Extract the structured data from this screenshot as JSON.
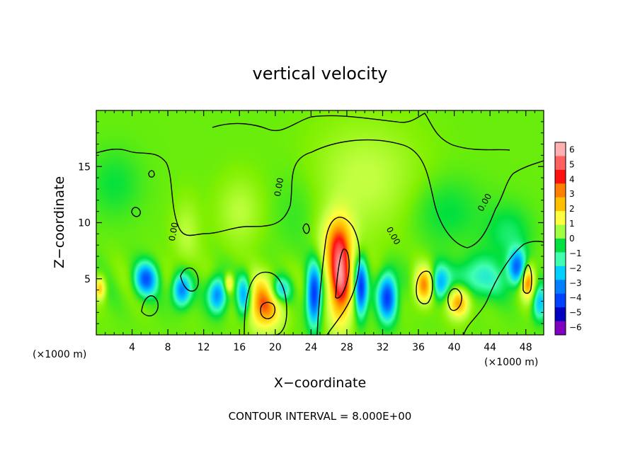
{
  "chart_data": {
    "type": "heatmap",
    "title": "vertical velocity",
    "xlabel": "X−coordinate",
    "ylabel": "Z−coordinate",
    "x_unit_label": "(×1000 m)",
    "y_unit_label": "(×1000 m)",
    "xlim": [
      0,
      50
    ],
    "ylim": [
      0,
      20
    ],
    "x_ticks": [
      4,
      8,
      12,
      16,
      20,
      24,
      28,
      32,
      36,
      40,
      44,
      48
    ],
    "y_ticks": [
      5,
      10,
      15
    ],
    "colorbar": {
      "ticks": [
        "6",
        "5",
        "4",
        "3",
        "2",
        "1",
        "0",
        "−1",
        "−2",
        "−3",
        "−4",
        "−5",
        "−6"
      ],
      "colors": [
        "#ffb0b0",
        "#ff6060",
        "#ff1010",
        "#ff8000",
        "#ffc000",
        "#ffff40",
        "#a0ff40",
        "#00e040",
        "#40ffb0",
        "#00d0ff",
        "#0080ff",
        "#0040ff",
        "#0000c0",
        "#8000c0"
      ]
    },
    "contour_labels": [
      "0.00",
      "0.00",
      "0.00",
      "0.00",
      "0.00"
    ],
    "annotation": "CONTOUR INTERVAL = 8.000E+00",
    "cells": [
      {
        "x": 18.8,
        "z": 2.8,
        "w": 3.5,
        "rx": 2.0,
        "rz": 2.3
      },
      {
        "x": 27.2,
        "z": 5.0,
        "w": 4.5,
        "rx": 1.4,
        "rz": 4.0
      },
      {
        "x": 26.8,
        "z": 8.5,
        "w": 1.8,
        "rx": 2.0,
        "rz": 2.5
      },
      {
        "x": 36.6,
        "z": 4.4,
        "w": 3.2,
        "rx": 1.1,
        "rz": 1.6
      },
      {
        "x": 40.5,
        "z": 3.0,
        "w": 3.4,
        "rx": 1.2,
        "rz": 1.4
      },
      {
        "x": 48.2,
        "z": 4.8,
        "w": 3.5,
        "rx": 0.8,
        "rz": 1.5
      },
      {
        "x": 0.4,
        "z": 4.2,
        "w": 2.5,
        "rx": 0.6,
        "rz": 1.0
      },
      {
        "x": 14.8,
        "z": 4.6,
        "w": 2.4,
        "rx": 0.5,
        "rz": 0.8
      },
      {
        "x": 16.0,
        "z": 11.0,
        "w": 0.8,
        "rx": 2.5,
        "rz": 3.0
      },
      {
        "x": 30.0,
        "z": 14.0,
        "w": 0.9,
        "rx": 6.0,
        "rz": 5.0
      },
      {
        "x": 10.0,
        "z": 9.0,
        "w": 0.8,
        "rx": 1.5,
        "rz": 3.0
      },
      {
        "x": 5.5,
        "z": 5.0,
        "w": -3.8,
        "rx": 1.2,
        "rz": 1.4
      },
      {
        "x": 9.5,
        "z": 4.0,
        "w": -3.5,
        "rx": 1.0,
        "rz": 1.4
      },
      {
        "x": 13.5,
        "z": 3.6,
        "w": -3.4,
        "rx": 1.0,
        "rz": 1.5
      },
      {
        "x": 16.5,
        "z": 3.5,
        "w": -3.2,
        "rx": 0.8,
        "rz": 1.8
      },
      {
        "x": 20.5,
        "z": 4.0,
        "w": -2.8,
        "rx": 1.2,
        "rz": 1.2
      },
      {
        "x": 24.3,
        "z": 3.6,
        "w": -4.6,
        "rx": 0.8,
        "rz": 2.6
      },
      {
        "x": 29.5,
        "z": 4.2,
        "w": -4.6,
        "rx": 0.7,
        "rz": 2.4
      },
      {
        "x": 32.5,
        "z": 3.4,
        "w": -4.6,
        "rx": 1.0,
        "rz": 2.0
      },
      {
        "x": 38.3,
        "z": 4.6,
        "w": -2.8,
        "rx": 1.0,
        "rz": 1.5
      },
      {
        "x": 42.5,
        "z": 5.0,
        "w": -1.8,
        "rx": 2.8,
        "rz": 1.8
      },
      {
        "x": 47.0,
        "z": 6.0,
        "w": -3.8,
        "rx": 1.0,
        "rz": 1.5
      },
      {
        "x": 49.5,
        "z": 2.8,
        "w": -2.4,
        "rx": 0.8,
        "rz": 1.5
      },
      {
        "x": 2.0,
        "z": 13.5,
        "w": -0.6,
        "rx": 3.0,
        "rz": 3.0
      },
      {
        "x": 39.0,
        "z": 11.0,
        "w": -0.7,
        "rx": 4.0,
        "rz": 3.0
      },
      {
        "x": 46.0,
        "z": 9.0,
        "w": -0.9,
        "rx": 2.5,
        "rz": 2.5
      },
      {
        "x": 22.5,
        "z": 11.0,
        "w": -0.4,
        "rx": 3.0,
        "rz": 4.0
      }
    ]
  }
}
